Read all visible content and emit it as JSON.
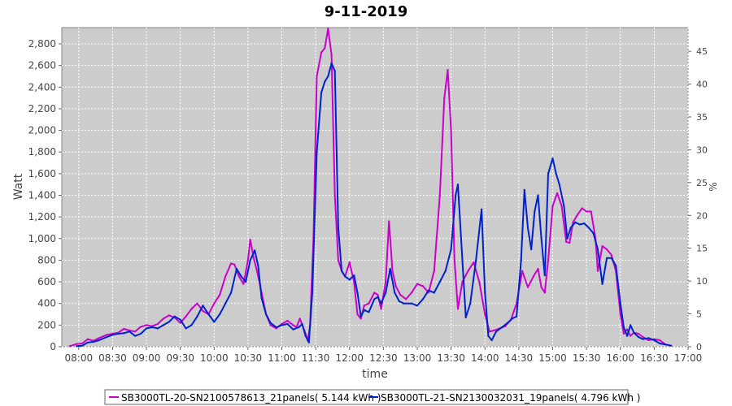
{
  "chart_data": {
    "type": "line",
    "title": "9-11-2019",
    "xlabel": "time",
    "ylabel": "Watt",
    "y2label": "%",
    "xlim": [
      "07:45",
      "17:00"
    ],
    "ylim": [
      0,
      2950
    ],
    "y2lim": [
      0,
      48.6
    ],
    "x_ticks": [
      "08:00",
      "08:30",
      "09:00",
      "09:30",
      "10:00",
      "10:30",
      "11:00",
      "11:30",
      "12:00",
      "12:30",
      "13:00",
      "13:30",
      "14:00",
      "14:30",
      "15:00",
      "15:30",
      "16:00",
      "16:30",
      "17:00"
    ],
    "y_ticks": [
      "0",
      "200",
      "400",
      "600",
      "800",
      "1,000",
      "1,200",
      "1,400",
      "1,600",
      "1,800",
      "2,000",
      "2,200",
      "2,400",
      "2,600",
      "2,800"
    ],
    "y2_ticks": [
      "0",
      "5",
      "10",
      "15",
      "20",
      "25",
      "30",
      "35",
      "40",
      "45"
    ],
    "grid": true,
    "plot_background": "#cccccc",
    "legend_position": "bottom",
    "series": [
      {
        "name": "SB3000TL-20-SN2100578613_21panels( 5.144 kWh )",
        "color": "#cc00cc",
        "points": [
          [
            "07:52",
            5
          ],
          [
            "07:58",
            25
          ],
          [
            "08:03",
            30
          ],
          [
            "08:08",
            70
          ],
          [
            "08:13",
            55
          ],
          [
            "08:18",
            80
          ],
          [
            "08:25",
            110
          ],
          [
            "08:30",
            120
          ],
          [
            "08:35",
            130
          ],
          [
            "08:40",
            165
          ],
          [
            "08:45",
            150
          ],
          [
            "08:50",
            140
          ],
          [
            "08:55",
            185
          ],
          [
            "09:00",
            200
          ],
          [
            "09:05",
            190
          ],
          [
            "09:10",
            210
          ],
          [
            "09:15",
            260
          ],
          [
            "09:20",
            290
          ],
          [
            "09:25",
            270
          ],
          [
            "09:30",
            220
          ],
          [
            "09:35",
            280
          ],
          [
            "09:40",
            350
          ],
          [
            "09:45",
            400
          ],
          [
            "09:50",
            330
          ],
          [
            "09:55",
            300
          ],
          [
            "10:00",
            400
          ],
          [
            "10:05",
            480
          ],
          [
            "10:10",
            650
          ],
          [
            "10:15",
            770
          ],
          [
            "10:18",
            760
          ],
          [
            "10:22",
            650
          ],
          [
            "10:26",
            580
          ],
          [
            "10:30",
            800
          ],
          [
            "10:32",
            990
          ],
          [
            "10:35",
            820
          ],
          [
            "10:38",
            700
          ],
          [
            "10:42",
            500
          ],
          [
            "10:46",
            300
          ],
          [
            "10:50",
            200
          ],
          [
            "10:55",
            170
          ],
          [
            "11:00",
            210
          ],
          [
            "11:05",
            240
          ],
          [
            "11:10",
            200
          ],
          [
            "11:13",
            180
          ],
          [
            "11:16",
            260
          ],
          [
            "11:20",
            150
          ],
          [
            "11:23",
            55
          ],
          [
            "11:25",
            200
          ],
          [
            "11:28",
            1000
          ],
          [
            "11:31",
            2500
          ],
          [
            "11:35",
            2720
          ],
          [
            "11:38",
            2760
          ],
          [
            "11:41",
            2940
          ],
          [
            "11:44",
            2700
          ],
          [
            "11:47",
            1400
          ],
          [
            "11:50",
            800
          ],
          [
            "11:53",
            700
          ],
          [
            "11:56",
            650
          ],
          [
            "12:00",
            780
          ],
          [
            "12:04",
            600
          ],
          [
            "12:07",
            300
          ],
          [
            "12:10",
            260
          ],
          [
            "12:13",
            380
          ],
          [
            "12:17",
            400
          ],
          [
            "12:22",
            500
          ],
          [
            "12:25",
            480
          ],
          [
            "12:28",
            350
          ],
          [
            "12:32",
            600
          ],
          [
            "12:35",
            1160
          ],
          [
            "12:38",
            700
          ],
          [
            "12:41",
            560
          ],
          [
            "12:45",
            480
          ],
          [
            "12:50",
            440
          ],
          [
            "12:55",
            500
          ],
          [
            "13:00",
            580
          ],
          [
            "13:05",
            560
          ],
          [
            "13:10",
            500
          ],
          [
            "13:15",
            700
          ],
          [
            "13:20",
            1400
          ],
          [
            "13:24",
            2300
          ],
          [
            "13:27",
            2560
          ],
          [
            "13:30",
            2000
          ],
          [
            "13:33",
            800
          ],
          [
            "13:36",
            350
          ],
          [
            "13:40",
            600
          ],
          [
            "13:45",
            700
          ],
          [
            "13:50",
            780
          ],
          [
            "13:55",
            600
          ],
          [
            "14:00",
            300
          ],
          [
            "14:04",
            140
          ],
          [
            "14:08",
            150
          ],
          [
            "14:13",
            170
          ],
          [
            "14:18",
            190
          ],
          [
            "14:23",
            250
          ],
          [
            "14:28",
            400
          ],
          [
            "14:33",
            700
          ],
          [
            "14:38",
            550
          ],
          [
            "14:43",
            650
          ],
          [
            "14:47",
            720
          ],
          [
            "14:50",
            550
          ],
          [
            "14:53",
            500
          ],
          [
            "14:56",
            800
          ],
          [
            "15:00",
            1300
          ],
          [
            "15:04",
            1420
          ],
          [
            "15:08",
            1300
          ],
          [
            "15:12",
            970
          ],
          [
            "15:15",
            960
          ],
          [
            "15:18",
            1150
          ],
          [
            "15:22",
            1220
          ],
          [
            "15:26",
            1280
          ],
          [
            "15:30",
            1250
          ],
          [
            "15:34",
            1250
          ],
          [
            "15:38",
            1000
          ],
          [
            "15:40",
            700
          ],
          [
            "15:44",
            930
          ],
          [
            "15:48",
            900
          ],
          [
            "15:52",
            850
          ],
          [
            "15:56",
            700
          ],
          [
            "16:00",
            300
          ],
          [
            "16:03",
            120
          ],
          [
            "16:06",
            160
          ],
          [
            "16:09",
            100
          ],
          [
            "16:12",
            130
          ],
          [
            "16:16",
            120
          ],
          [
            "16:20",
            90
          ],
          [
            "16:25",
            60
          ],
          [
            "16:30",
            70
          ],
          [
            "16:35",
            60
          ],
          [
            "16:40",
            20
          ],
          [
            "16:45",
            10
          ]
        ]
      },
      {
        "name": "SB3000TL-21-SN2130032031_19panels( 4.796 kWh )",
        "color": "#0022cc",
        "points": [
          [
            "07:58",
            5
          ],
          [
            "08:03",
            10
          ],
          [
            "08:08",
            40
          ],
          [
            "08:13",
            45
          ],
          [
            "08:18",
            60
          ],
          [
            "08:25",
            90
          ],
          [
            "08:30",
            110
          ],
          [
            "08:35",
            120
          ],
          [
            "08:40",
            125
          ],
          [
            "08:45",
            140
          ],
          [
            "08:50",
            100
          ],
          [
            "08:55",
            120
          ],
          [
            "09:00",
            170
          ],
          [
            "09:05",
            180
          ],
          [
            "09:10",
            170
          ],
          [
            "09:15",
            200
          ],
          [
            "09:20",
            230
          ],
          [
            "09:25",
            280
          ],
          [
            "09:30",
            250
          ],
          [
            "09:35",
            170
          ],
          [
            "09:40",
            200
          ],
          [
            "09:45",
            280
          ],
          [
            "09:50",
            380
          ],
          [
            "09:55",
            300
          ],
          [
            "10:00",
            230
          ],
          [
            "10:05",
            300
          ],
          [
            "10:10",
            400
          ],
          [
            "10:15",
            500
          ],
          [
            "10:20",
            720
          ],
          [
            "10:24",
            650
          ],
          [
            "10:28",
            600
          ],
          [
            "10:32",
            800
          ],
          [
            "10:36",
            890
          ],
          [
            "10:39",
            750
          ],
          [
            "10:42",
            450
          ],
          [
            "10:46",
            300
          ],
          [
            "10:50",
            220
          ],
          [
            "10:55",
            180
          ],
          [
            "11:00",
            200
          ],
          [
            "11:05",
            210
          ],
          [
            "11:10",
            160
          ],
          [
            "11:15",
            180
          ],
          [
            "11:18",
            210
          ],
          [
            "11:21",
            100
          ],
          [
            "11:24",
            40
          ],
          [
            "11:27",
            500
          ],
          [
            "11:31",
            1800
          ],
          [
            "11:35",
            2350
          ],
          [
            "11:38",
            2450
          ],
          [
            "11:41",
            2500
          ],
          [
            "11:44",
            2620
          ],
          [
            "11:47",
            2550
          ],
          [
            "11:50",
            1100
          ],
          [
            "11:53",
            700
          ],
          [
            "11:56",
            650
          ],
          [
            "12:00",
            620
          ],
          [
            "12:04",
            660
          ],
          [
            "12:07",
            500
          ],
          [
            "12:10",
            280
          ],
          [
            "12:13",
            340
          ],
          [
            "12:17",
            320
          ],
          [
            "12:22",
            440
          ],
          [
            "12:25",
            460
          ],
          [
            "12:28",
            400
          ],
          [
            "12:32",
            500
          ],
          [
            "12:36",
            720
          ],
          [
            "12:40",
            500
          ],
          [
            "12:44",
            420
          ],
          [
            "12:48",
            400
          ],
          [
            "12:55",
            400
          ],
          [
            "13:00",
            380
          ],
          [
            "13:05",
            440
          ],
          [
            "13:10",
            520
          ],
          [
            "13:15",
            500
          ],
          [
            "13:20",
            600
          ],
          [
            "13:25",
            700
          ],
          [
            "13:30",
            900
          ],
          [
            "13:34",
            1400
          ],
          [
            "13:36",
            1500
          ],
          [
            "13:40",
            800
          ],
          [
            "13:43",
            270
          ],
          [
            "13:47",
            400
          ],
          [
            "13:52",
            800
          ],
          [
            "13:57",
            1270
          ],
          [
            "14:00",
            500
          ],
          [
            "14:03",
            100
          ],
          [
            "14:06",
            60
          ],
          [
            "14:10",
            140
          ],
          [
            "14:15",
            180
          ],
          [
            "14:20",
            220
          ],
          [
            "14:24",
            260
          ],
          [
            "14:28",
            280
          ],
          [
            "14:32",
            800
          ],
          [
            "14:35",
            1450
          ],
          [
            "14:38",
            1100
          ],
          [
            "14:41",
            900
          ],
          [
            "14:44",
            1250
          ],
          [
            "14:47",
            1400
          ],
          [
            "14:50",
            1000
          ],
          [
            "14:53",
            660
          ],
          [
            "14:56",
            1600
          ],
          [
            "15:00",
            1740
          ],
          [
            "15:03",
            1600
          ],
          [
            "15:06",
            1500
          ],
          [
            "15:10",
            1300
          ],
          [
            "15:13",
            1000
          ],
          [
            "15:16",
            1100
          ],
          [
            "15:20",
            1150
          ],
          [
            "15:24",
            1130
          ],
          [
            "15:28",
            1140
          ],
          [
            "15:32",
            1100
          ],
          [
            "15:36",
            1050
          ],
          [
            "15:40",
            900
          ],
          [
            "15:44",
            580
          ],
          [
            "15:48",
            820
          ],
          [
            "15:52",
            820
          ],
          [
            "15:56",
            750
          ],
          [
            "16:00",
            400
          ],
          [
            "16:03",
            180
          ],
          [
            "16:06",
            100
          ],
          [
            "16:09",
            200
          ],
          [
            "16:12",
            130
          ],
          [
            "16:16",
            90
          ],
          [
            "16:20",
            70
          ],
          [
            "16:25",
            80
          ],
          [
            "16:30",
            60
          ],
          [
            "16:35",
            30
          ],
          [
            "16:40",
            20
          ],
          [
            "16:45",
            10
          ]
        ]
      }
    ]
  }
}
